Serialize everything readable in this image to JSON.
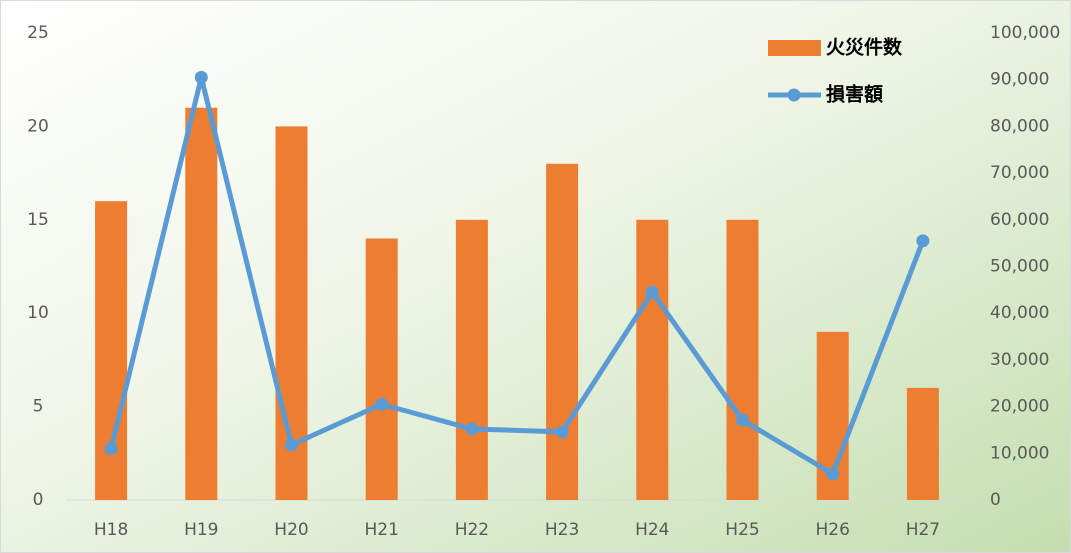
{
  "chart_data": {
    "type": "bar",
    "categories": [
      "H18",
      "H19",
      "H20",
      "H21",
      "H22",
      "H23",
      "H24",
      "H25",
      "H26",
      "H27"
    ],
    "series": [
      {
        "name": "火災件数",
        "type": "bar",
        "color": "#ed7d31",
        "values": [
          16,
          21,
          20,
          14,
          15,
          18,
          15,
          15,
          9,
          6
        ]
      },
      {
        "name": "損害額",
        "type": "line",
        "axis": "y2",
        "color": "#5b9bd5",
        "values": [
          11000,
          90500,
          11800,
          20500,
          15200,
          14600,
          44500,
          17100,
          5600,
          55500
        ]
      }
    ],
    "ylim": [
      0,
      25
    ],
    "yticks": [
      0,
      5,
      10,
      15,
      20,
      25
    ],
    "y2lim": [
      0,
      100000
    ],
    "y2ticks": [
      0,
      {
        "value": 10000,
        "label": "10,000"
      },
      {
        "value": 20000,
        "label": "20,000"
      },
      {
        "value": 30000,
        "label": "30,000"
      },
      {
        "value": 40000,
        "label": "40,000"
      },
      {
        "value": 50000,
        "label": "50,000"
      },
      {
        "value": 60000,
        "label": "60,000"
      },
      {
        "value": 70000,
        "label": "70,000"
      },
      {
        "value": 80000,
        "label": "80,000"
      },
      {
        "value": 90000,
        "label": "90,000"
      },
      {
        "value": 100000,
        "label": "100,000"
      }
    ],
    "grid": false,
    "legend": "top-right"
  }
}
